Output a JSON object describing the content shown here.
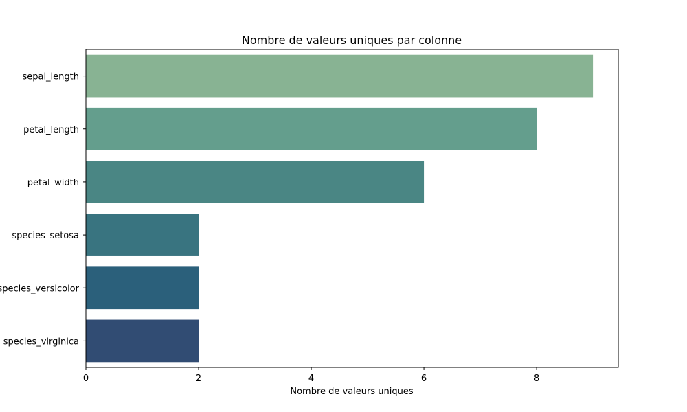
{
  "chart_data": {
    "type": "bar",
    "orientation": "horizontal",
    "title": "Nombre de valeurs uniques par colonne",
    "xlabel": "Nombre de valeurs uniques",
    "ylabel": "",
    "categories": [
      "sepal_length",
      "petal_length",
      "petal_width",
      "species_setosa",
      "species_versicolor",
      "species_virginica"
    ],
    "values": [
      9,
      8,
      6,
      2,
      2,
      2
    ],
    "colors": [
      "#88b393",
      "#649e8d",
      "#4a8684",
      "#397480",
      "#2b607b",
      "#314c73"
    ],
    "xlim": [
      0,
      9.45
    ],
    "xticks": [
      0,
      2,
      4,
      6,
      8
    ],
    "grid": false,
    "legend": "none"
  }
}
